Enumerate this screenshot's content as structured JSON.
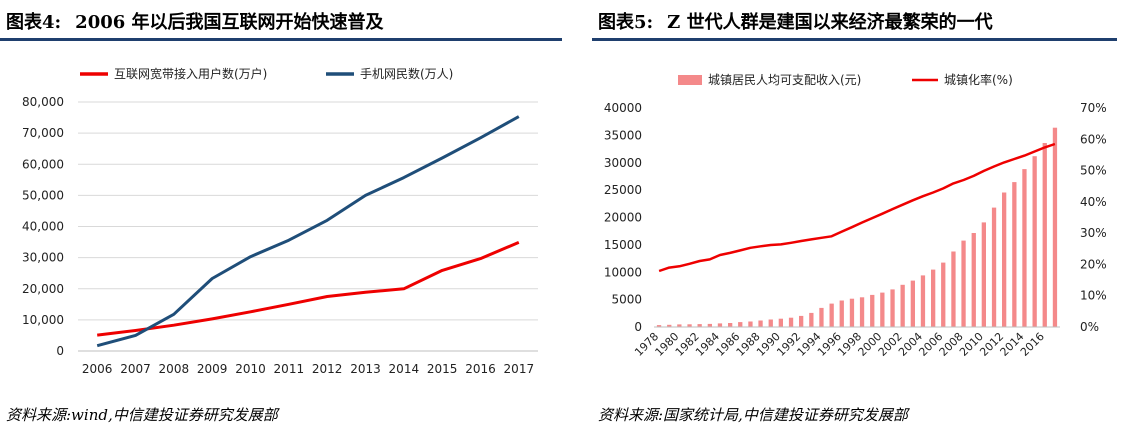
{
  "left": {
    "fig_num": "图表4:",
    "title": "2006 年以后我国互联网开始快速普及",
    "source": "资料来源:wind,中信建投证券研究发展部"
  },
  "right": {
    "fig_num": "图表5:",
    "title": "Z 世代人群是建国以来经济最繁荣的一代",
    "source": "资料来源:国家统计局,中信建投证券研究发展部"
  },
  "colors": {
    "red": "#ee0000",
    "navy": "#1f4e79",
    "bar": "#f4898a",
    "grid": "#d9d9d9",
    "rule": "#1f3f6e"
  },
  "chart_data": [
    {
      "type": "line",
      "title": "2006 年以后我国互联网开始快速普及",
      "categories": [
        "2006",
        "2007",
        "2008",
        "2009",
        "2010",
        "2011",
        "2012",
        "2013",
        "2014",
        "2015",
        "2016",
        "2017"
      ],
      "y_ticks": [
        "0",
        "10,000",
        "20,000",
        "30,000",
        "40,000",
        "50,000",
        "60,000",
        "70,000",
        "80,000"
      ],
      "ylim": [
        0,
        80000
      ],
      "legend_position": "top",
      "series": [
        {
          "name": "互联网宽带接入用户数(万户)",
          "color": "#ee0000",
          "values": [
            5100,
            6600,
            8300,
            10300,
            12600,
            15000,
            17500,
            18900,
            20000,
            25900,
            29700,
            34900
          ]
        },
        {
          "name": "手机网民数(万人)",
          "color": "#1f4e79",
          "values": [
            1700,
            5000,
            11800,
            23300,
            30300,
            35600,
            42000,
            50000,
            55700,
            62000,
            68500,
            75300
          ]
        }
      ]
    },
    {
      "type": "bar+line",
      "title": "Z 世代人群是建国以来经济最繁荣的一代",
      "categories": [
        "1978",
        "1979",
        "1980",
        "1981",
        "1982",
        "1983",
        "1984",
        "1985",
        "1986",
        "1987",
        "1988",
        "1989",
        "1990",
        "1991",
        "1992",
        "1993",
        "1994",
        "1995",
        "1996",
        "1997",
        "1998",
        "1999",
        "2000",
        "2001",
        "2002",
        "2003",
        "2004",
        "2005",
        "2006",
        "2007",
        "2008",
        "2009",
        "2010",
        "2011",
        "2012",
        "2013",
        "2014",
        "2015",
        "2016",
        "2017"
      ],
      "x_tick_labels": [
        "1978",
        "1980",
        "1982",
        "1984",
        "1986",
        "1988",
        "1990",
        "1992",
        "1994",
        "1996",
        "1998",
        "2000",
        "2002",
        "2004",
        "2006",
        "2008",
        "2010",
        "2012",
        "2014",
        "2016"
      ],
      "y_left_ticks": [
        "0",
        "5000",
        "10000",
        "15000",
        "20000",
        "25000",
        "30000",
        "35000",
        "40000"
      ],
      "y_right_ticks": [
        "0%",
        "10%",
        "20%",
        "30%",
        "40%",
        "50%",
        "60%",
        "70%"
      ],
      "ylim_left": [
        0,
        40000
      ],
      "ylim_right": [
        0,
        70
      ],
      "legend_position": "top",
      "series": [
        {
          "name": "城镇居民人均可支配收入(元)",
          "type": "bar",
          "axis": "left",
          "color": "#f4898a",
          "values": [
            343,
            405,
            478,
            500,
            535,
            565,
            652,
            739,
            900,
            1002,
            1180,
            1374,
            1510,
            1701,
            2027,
            2577,
            3496,
            4283,
            4839,
            5160,
            5425,
            5854,
            6280,
            6860,
            7703,
            8472,
            9422,
            10493,
            11759,
            13786,
            15781,
            17175,
            19109,
            21810,
            24565,
            26467,
            28844,
            31195,
            33616,
            36396
          ]
        },
        {
          "name": "城镇化率(%)",
          "type": "line",
          "axis": "right",
          "color": "#ee0000",
          "values": [
            17.9,
            19.0,
            19.4,
            20.2,
            21.1,
            21.6,
            23.0,
            23.7,
            24.5,
            25.3,
            25.8,
            26.2,
            26.4,
            26.9,
            27.5,
            28.0,
            28.5,
            29.0,
            30.5,
            31.9,
            33.4,
            34.8,
            36.2,
            37.7,
            39.1,
            40.5,
            41.8,
            43.0,
            44.3,
            45.9,
            47.0,
            48.3,
            49.9,
            51.3,
            52.6,
            53.7,
            54.8,
            56.1,
            57.4,
            58.5
          ]
        }
      ]
    }
  ]
}
